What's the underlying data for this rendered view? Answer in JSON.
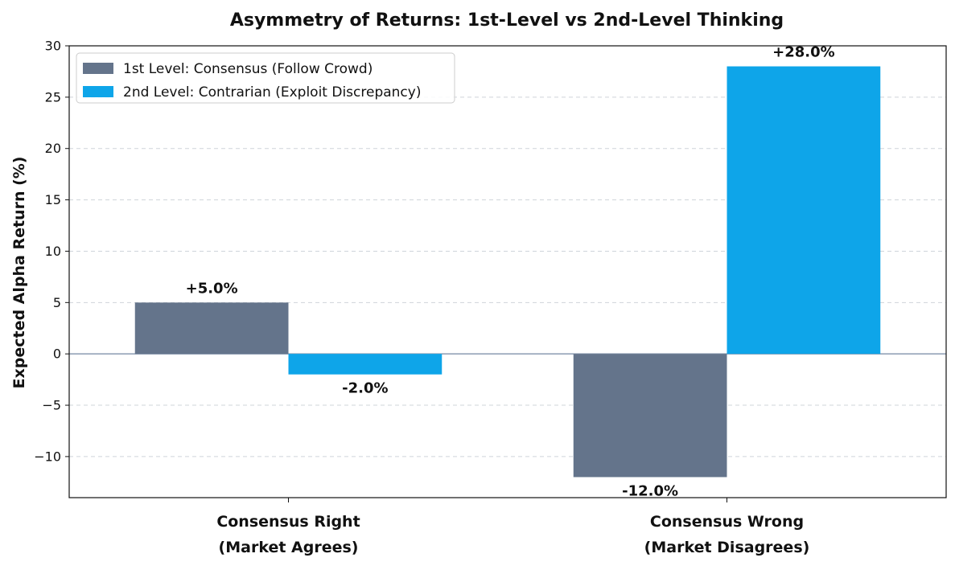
{
  "chart_data": {
    "type": "bar",
    "title": "Asymmetry of Returns: 1st-Level vs 2nd-Level Thinking",
    "ylabel": "Expected Alpha Return (%)",
    "xlabel": "",
    "categories": [
      [
        "Consensus Right",
        "(Market Agrees)"
      ],
      [
        "Consensus Wrong",
        "(Market Disagrees)"
      ]
    ],
    "series": [
      {
        "name": "1st Level: Consensus (Follow Crowd)",
        "values": [
          5.0,
          -12.0
        ],
        "labels": [
          "+5.0%",
          "-12.0%"
        ],
        "color": "#64748b"
      },
      {
        "name": "2nd Level: Contrarian (Exploit Discrepancy)",
        "values": [
          -2.0,
          28.0
        ],
        "labels": [
          "-2.0%",
          "+28.0%"
        ],
        "color": "#0ea5e9"
      }
    ],
    "ylim": [
      -14,
      30
    ],
    "yticks": [
      -10,
      -5,
      0,
      5,
      10,
      15,
      20,
      25,
      30
    ],
    "ytick_labels": [
      "−10",
      "−5",
      "0",
      "5",
      "10",
      "15",
      "20",
      "25",
      "30"
    ],
    "grid": true,
    "zero_line_color": "#94a3b8",
    "legend_position": "top-left"
  }
}
